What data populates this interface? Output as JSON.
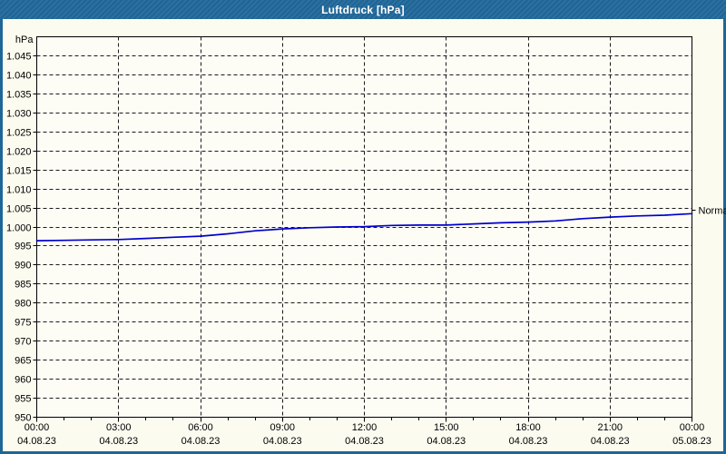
{
  "window": {
    "title": "Luftdruck [hPa]"
  },
  "colors": {
    "titlebar_bg": "#20689a",
    "border": "#1e6698",
    "background": "#fbfbf0",
    "plot_bg": "#fdfdf6",
    "plot_border": "#000000",
    "grid": "#1a1a1a",
    "text": "#000000",
    "title_text": "#ffffff",
    "line": "#0000cc"
  },
  "chart_data": {
    "type": "line",
    "title": "Luftdruck [hPa]",
    "y_unit": "hPa",
    "ylim": [
      950,
      1050
    ],
    "ytick_step": 5,
    "yticks": [
      {
        "value": 1045,
        "label": "1.045"
      },
      {
        "value": 1040,
        "label": "1.040"
      },
      {
        "value": 1035,
        "label": "1.035"
      },
      {
        "value": 1030,
        "label": "1.030"
      },
      {
        "value": 1025,
        "label": "1.025"
      },
      {
        "value": 1020,
        "label": "1.020"
      },
      {
        "value": 1015,
        "label": "1.015"
      },
      {
        "value": 1010,
        "label": "1.010"
      },
      {
        "value": 1005,
        "label": "1.005"
      },
      {
        "value": 1000,
        "label": "1.000"
      },
      {
        "value": 995,
        "label": "995"
      },
      {
        "value": 990,
        "label": "990"
      },
      {
        "value": 985,
        "label": "985"
      },
      {
        "value": 980,
        "label": "980"
      },
      {
        "value": 975,
        "label": "975"
      },
      {
        "value": 970,
        "label": "970"
      },
      {
        "value": 965,
        "label": "965"
      },
      {
        "value": 960,
        "label": "960"
      },
      {
        "value": 955,
        "label": "955"
      },
      {
        "value": 950,
        "label": "950"
      }
    ],
    "xlim_hours": [
      0,
      24
    ],
    "minor_tick_every_hours": 1,
    "xticks": [
      {
        "hour": 0,
        "time": "00:00",
        "date": "04.08.23"
      },
      {
        "hour": 3,
        "time": "03:00",
        "date": "04.08.23"
      },
      {
        "hour": 6,
        "time": "06:00",
        "date": "04.08.23"
      },
      {
        "hour": 9,
        "time": "09:00",
        "date": "04.08.23"
      },
      {
        "hour": 12,
        "time": "12:00",
        "date": "04.08.23"
      },
      {
        "hour": 15,
        "time": "15:00",
        "date": "04.08.23"
      },
      {
        "hour": 18,
        "time": "18:00",
        "date": "04.08.23"
      },
      {
        "hour": 21,
        "time": "21:00",
        "date": "04.08.23"
      },
      {
        "hour": 24,
        "time": "00:00",
        "date": "05.08.23"
      }
    ],
    "grid": "dashed",
    "legend": "none",
    "series": [
      {
        "name": "Luftdruck",
        "color": "#0000cc",
        "x_hours": [
          0,
          1,
          2,
          3,
          4,
          5,
          6,
          7,
          8,
          9,
          10,
          11,
          12,
          13,
          14,
          15,
          16,
          17,
          18,
          19,
          20,
          21,
          22,
          23,
          24
        ],
        "values": [
          996.4,
          996.5,
          996.6,
          996.7,
          997.0,
          997.3,
          997.6,
          998.2,
          999.0,
          999.5,
          999.8,
          1000.0,
          1000.1,
          1000.4,
          1000.5,
          1000.5,
          1000.8,
          1001.1,
          1001.3,
          1001.6,
          1002.2,
          1002.6,
          1002.9,
          1003.1,
          1003.5
        ]
      }
    ],
    "annotations": [
      {
        "label": "Normal",
        "value": 1004.4,
        "side": "right"
      }
    ]
  }
}
